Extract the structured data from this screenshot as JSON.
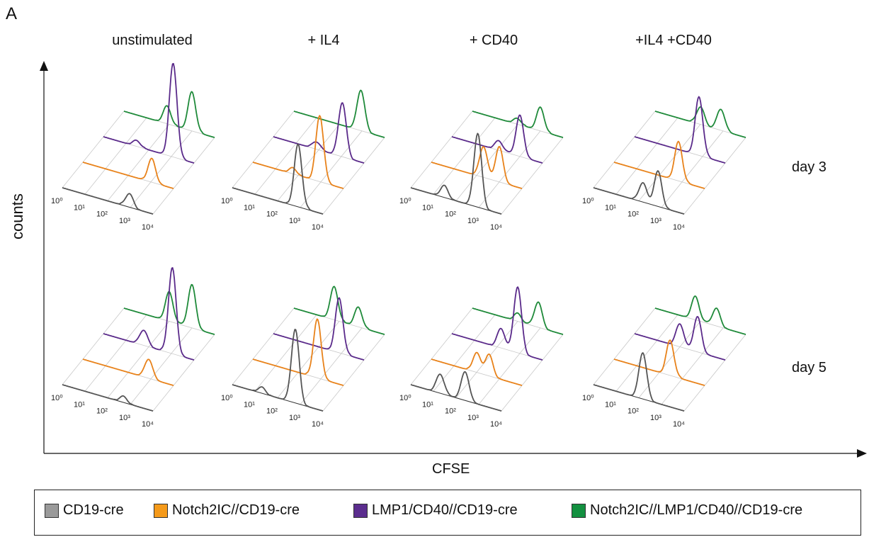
{
  "panel_letter": "A",
  "colors": {
    "CD19-cre": "#555555",
    "Notch2IC//CD19-cre": "#e8821a",
    "LMP1/CD40//CD19-cre": "#5a2a8a",
    "Notch2IC//LMP1/CD40//CD19-cre": "#1f8a3a"
  },
  "legend": [
    {
      "label": "CD19-cre",
      "swatch_color": "#9a9a9a"
    },
    {
      "label": "Notch2IC//CD19-cre",
      "swatch_color": "#f59a1a"
    },
    {
      "label": "LMP1/CD40//CD19-cre",
      "swatch_color": "#5b2d8e"
    },
    {
      "label": "Notch2IC//LMP1/CD40//CD19-cre",
      "swatch_color": "#139040"
    }
  ],
  "chart_data": {
    "type": "area",
    "chart_style": "3D-offset overlay histograms (flow cytometry)",
    "xlabel": "CFSE",
    "ylabel": "counts",
    "x_scale": "log",
    "xlim": [
      1,
      10000
    ],
    "x_ticks": [
      1,
      10,
      100,
      1000,
      10000
    ],
    "columns": [
      "unstimulated",
      "+ IL4",
      "+ CD40",
      "+IL4 +CD40"
    ],
    "rows": [
      "day 3",
      "day 5"
    ],
    "series_order_front_to_back": [
      "CD19-cre",
      "Notch2IC//CD19-cre",
      "LMP1/CD40//CD19-cre",
      "Notch2IC//LMP1/CD40//CD19-cre"
    ],
    "panels": [
      {
        "row": "day 3",
        "column": "unstimulated",
        "peaks": {
          "CD19-cre": [
            [
              900,
              0.35
            ]
          ],
          "Notch2IC//CD19-cre": [
            [
              1100,
              0.6
            ]
          ],
          "LMP1/CD40//CD19-cre": [
            [
              30,
              0.15
            ],
            [
              1200,
              2.4
            ]
          ],
          "Notch2IC//LMP1/CD40//CD19-cre": [
            [
              80,
              0.45
            ],
            [
              1000,
              1.0
            ]
          ]
        }
      },
      {
        "row": "day 3",
        "column": "+ IL4",
        "peaks": {
          "CD19-cre": [
            [
              800,
              1.6
            ]
          ],
          "Notch2IC//CD19-cre": [
            [
              60,
              0.15
            ],
            [
              900,
              1.7
            ]
          ],
          "LMP1/CD40//CD19-cre": [
            [
              80,
              0.2
            ],
            [
              1100,
              1.4
            ]
          ],
          "Notch2IC//LMP1/CD40//CD19-cre": [
            [
              900,
              1.05
            ]
          ]
        }
      },
      {
        "row": "day 3",
        "column": "+ CD40",
        "peaks": {
          "CD19-cre": [
            [
              30,
              0.3
            ],
            [
              900,
              1.9
            ]
          ],
          "Notch2IC//CD19-cre": [
            [
              200,
              0.8
            ],
            [
              1000,
              0.9
            ]
          ],
          "LMP1/CD40//CD19-cre": [
            [
              120,
              0.25
            ],
            [
              1000,
              1.05
            ]
          ],
          "Notch2IC//LMP1/CD40//CD19-cre": [
            [
              100,
              0.15
            ],
            [
              1000,
              0.6
            ]
          ]
        }
      },
      {
        "row": "day 3",
        "column": "+IL4 +CD40",
        "peaks": {
          "CD19-cre": [
            [
              150,
              0.5
            ],
            [
              700,
              0.9
            ]
          ],
          "Notch2IC//CD19-cre": [
            [
              700,
              1.0
            ]
          ],
          "LMP1/CD40//CD19-cre": [
            [
              700,
              1.5
            ]
          ],
          "Notch2IC//LMP1/CD40//CD19-cre": [
            [
              100,
              0.45
            ],
            [
              800,
              0.55
            ]
          ]
        }
      },
      {
        "row": "day 5",
        "column": "unstimulated",
        "peaks": {
          "CD19-cre": [
            [
              500,
              0.15
            ]
          ],
          "Notch2IC//CD19-cre": [
            [
              800,
              0.5
            ]
          ],
          "LMP1/CD40//CD19-cre": [
            [
              60,
              0.4
            ],
            [
              1100,
              2.2
            ]
          ],
          "Notch2IC//LMP1/CD40//CD19-cre": [
            [
              100,
              0.75
            ],
            [
              1000,
              1.1
            ]
          ]
        }
      },
      {
        "row": "day 5",
        "column": "+ IL4",
        "peaks": {
          "CD19-cre": [
            [
              20,
              0.15
            ],
            [
              600,
              1.9
            ]
          ],
          "Notch2IC//CD19-cre": [
            [
              700,
              1.5
            ]
          ],
          "LMP1/CD40//CD19-cre": [
            [
              800,
              1.4
            ]
          ],
          "Notch2IC//LMP1/CD40//CD19-cre": [
            [
              60,
              0.85
            ],
            [
              700,
              0.5
            ]
          ]
        }
      },
      {
        "row": "day 5",
        "column": "+ CD40",
        "peaks": {
          "CD19-cre": [
            [
              20,
              0.5
            ],
            [
              250,
              0.75
            ]
          ],
          "Notch2IC//CD19-cre": [
            [
              100,
              0.5
            ],
            [
              350,
              0.55
            ]
          ],
          "LMP1/CD40//CD19-cre": [
            [
              150,
              0.5
            ],
            [
              800,
              1.7
            ]
          ],
          "Notch2IC//LMP1/CD40//CD19-cre": [
            [
              100,
              0.2
            ],
            [
              800,
              0.65
            ]
          ]
        }
      },
      {
        "row": "day 5",
        "column": "+IL4 +CD40",
        "peaks": {
          "CD19-cre": [
            [
              150,
              1.2
            ]
          ],
          "Notch2IC//CD19-cre": [
            [
              300,
              0.9
            ]
          ],
          "LMP1/CD40//CD19-cre": [
            [
              100,
              0.6
            ],
            [
              600,
              0.9
            ]
          ],
          "Notch2IC//LMP1/CD40//CD19-cre": [
            [
              60,
              0.6
            ],
            [
              500,
              0.45
            ]
          ]
        }
      }
    ]
  }
}
